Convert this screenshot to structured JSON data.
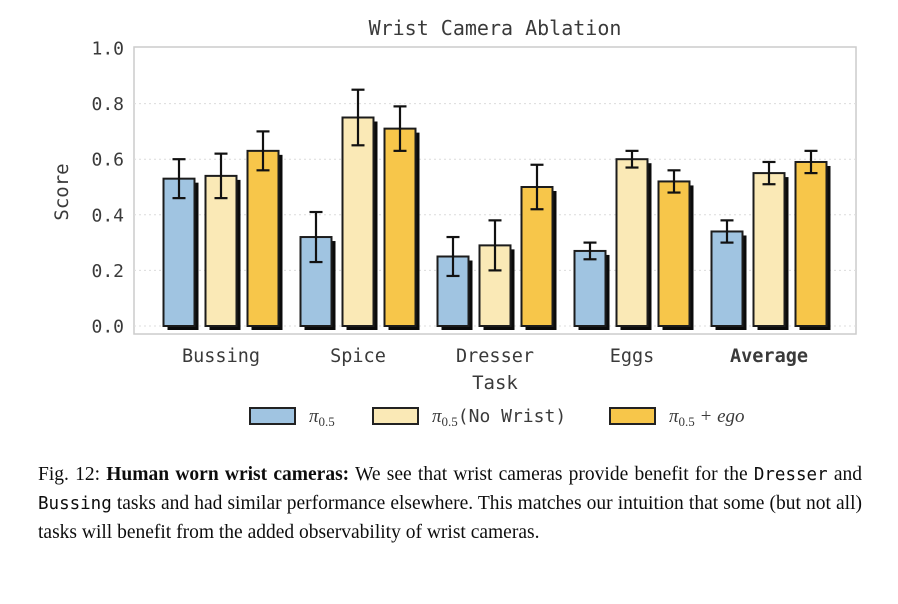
{
  "chart_data": {
    "type": "bar",
    "title": "Wrist Camera Ablation",
    "xlabel": "Task",
    "ylabel": "Score",
    "ylim": [
      0.0,
      1.0
    ],
    "yticks": [
      "0.0",
      "0.2",
      "0.4",
      "0.6",
      "0.8",
      "1.0"
    ],
    "grid": true,
    "grid_style": "dashed-horizontal",
    "legend_position": "below-xlabel",
    "categories": [
      "Bussing",
      "Spice",
      "Dresser",
      "Eggs",
      "Average"
    ],
    "emphasized_category": "Average",
    "series": [
      {
        "name": "pi05",
        "legend": {
          "pi": "π",
          "sub": "0.5",
          "rest": "",
          "rest_style": "none"
        },
        "color": "#a0c4e1",
        "values": [
          0.53,
          0.32,
          0.25,
          0.27,
          0.34
        ],
        "errors": [
          0.07,
          0.09,
          0.07,
          0.03,
          0.04
        ]
      },
      {
        "name": "pi05-no-wrist",
        "legend": {
          "pi": "π",
          "sub": "0.5",
          "rest": "(No Wrist)",
          "rest_style": "mono"
        },
        "color": "#fae9b6",
        "values": [
          0.54,
          0.75,
          0.29,
          0.6,
          0.55
        ],
        "errors": [
          0.08,
          0.1,
          0.09,
          0.03,
          0.04
        ]
      },
      {
        "name": "pi05-ego",
        "legend": {
          "pi": "π",
          "sub": "0.5",
          "rest": " + ego",
          "rest_style": "italic"
        },
        "color": "#f7c64a",
        "values": [
          0.63,
          0.71,
          0.5,
          0.52,
          0.59
        ],
        "errors": [
          0.07,
          0.08,
          0.08,
          0.04,
          0.04
        ]
      }
    ],
    "bar_edge_color": "#1c1c1c",
    "shadow_color": "#0b0b0b",
    "spine_color": "#cccccc",
    "gridline_color": "#dcdcdc",
    "error_bar_color": "#111111"
  },
  "caption": {
    "parts": [
      {
        "text": "Fig. 12: ",
        "style": "normal"
      },
      {
        "text": "Human worn wrist cameras:",
        "style": "bold"
      },
      {
        "text": " We see that wrist cameras provide benefit for the ",
        "style": "normal"
      },
      {
        "text": "Dresser",
        "style": "mono"
      },
      {
        "text": " and ",
        "style": "normal"
      },
      {
        "text": "Bussing",
        "style": "mono"
      },
      {
        "text": " tasks and had similar performance elsewhere. This matches our intuition that some (but not all) tasks will benefit from the added observability of wrist cameras.",
        "style": "normal"
      }
    ]
  }
}
